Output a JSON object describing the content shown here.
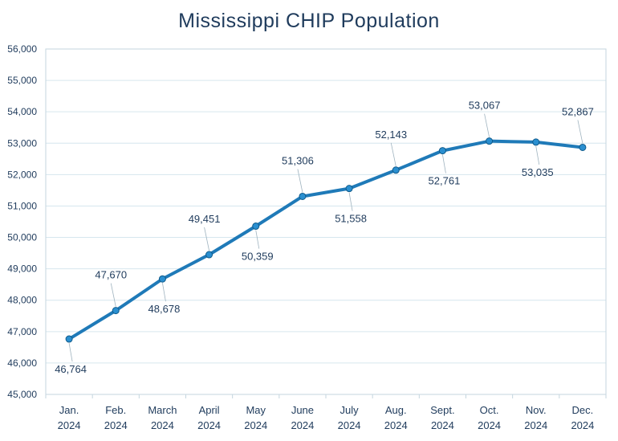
{
  "chart_data": {
    "type": "line",
    "title": "Mississippi CHIP Population",
    "xlabel": "",
    "ylabel": "",
    "categories": [
      "Jan.\n2024",
      "Feb.\n2024",
      "March\n2024",
      "April\n2024",
      "May\n2024",
      "June\n2024",
      "July\n2024",
      "Aug.\n2024",
      "Sept.\n2024",
      "Oct.\n2024",
      "Nov.\n2024",
      "Dec.\n2024"
    ],
    "series": [
      {
        "name": "CHIP Population",
        "values": [
          46764,
          47670,
          48678,
          49451,
          50359,
          51306,
          51558,
          52143,
          52761,
          53067,
          53035,
          52867
        ],
        "labels": [
          "46,764",
          "47,670",
          "48,678",
          "49,451",
          "50,359",
          "51,306",
          "51,558",
          "52,143",
          "52,761",
          "53,067",
          "53,035",
          "52,867"
        ],
        "label_positions": [
          "below",
          "above",
          "below",
          "above",
          "below",
          "above",
          "below",
          "above",
          "below",
          "above",
          "below",
          "above"
        ]
      }
    ],
    "ylim": [
      45000,
      56000
    ],
    "yticks": [
      45000,
      46000,
      47000,
      48000,
      49000,
      50000,
      51000,
      52000,
      53000,
      54000,
      55000,
      56000
    ],
    "ytick_labels": [
      "45,000",
      "46,000",
      "47,000",
      "48,000",
      "49,000",
      "50,000",
      "51,000",
      "52,000",
      "53,000",
      "54,000",
      "55,000",
      "56,000"
    ],
    "grid": true,
    "legend": "none",
    "colors": {
      "line": "#1f7ab8",
      "marker": "#2a8fd0",
      "grid": "#d6e6ee",
      "text": "#1f3b5c"
    }
  }
}
